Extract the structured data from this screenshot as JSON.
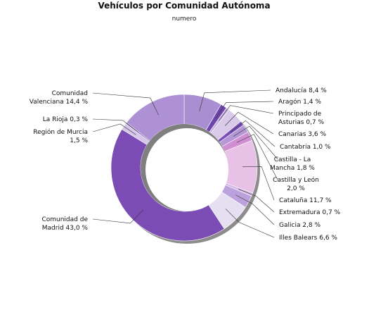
{
  "chart_data": {
    "type": "pie",
    "variant": "donut",
    "title": "Vehículos por Comunidad Autónoma",
    "subtitle": "numero",
    "slices": [
      {
        "label": "Andalucía",
        "display": "8,4 %",
        "value": 8.4,
        "color": "#a98ed2"
      },
      {
        "label": "Aragón",
        "display": "1,4 %",
        "value": 1.4,
        "color": "#6f45ad"
      },
      {
        "label": "Principado de Asturias",
        "display": "0,7 %",
        "value": 0.7,
        "color": "#c5b2e2"
      },
      {
        "label": "Canarias",
        "display": "3,6 %",
        "value": 3.6,
        "color": "#d9caea"
      },
      {
        "label": "Cantabria",
        "display": "1,0 %",
        "value": 1.0,
        "color": "#7a4fb8"
      },
      {
        "label": "Castilla - La Mancha",
        "display": "1,8 %",
        "value": 1.8,
        "color": "#b597d6"
      },
      {
        "label": "Castilla y León",
        "display": "2,0 %",
        "value": 2.0,
        "color": "#d08fd2"
      },
      {
        "label": "Cataluña",
        "display": "11,7 %",
        "value": 11.7,
        "color": "#e8c2e6"
      },
      {
        "label": "Extremadura",
        "display": "0,7 %",
        "value": 0.7,
        "color": "#d6b9e6"
      },
      {
        "label": "Galicia",
        "display": "2,8 %",
        "value": 2.8,
        "color": "#bca2dc"
      },
      {
        "label": "Illes Balears",
        "display": "6,6 %",
        "value": 6.6,
        "color": "#e6dff2"
      },
      {
        "label": "Comunidad de Madrid",
        "display": "43,0 %",
        "value": 43.0,
        "color": "#7b4cb4"
      },
      {
        "label": "Región de Murcia",
        "display": "1,5 %",
        "value": 1.5,
        "color": "#d7c6ec"
      },
      {
        "label": "La Rioja",
        "display": "0,3 %",
        "value": 0.3,
        "color": "#5f3a98"
      },
      {
        "label": "Comunidad Valenciana",
        "display": "14,4 %",
        "value": 14.4,
        "color": "#ae91d4"
      }
    ],
    "legend": "none"
  }
}
